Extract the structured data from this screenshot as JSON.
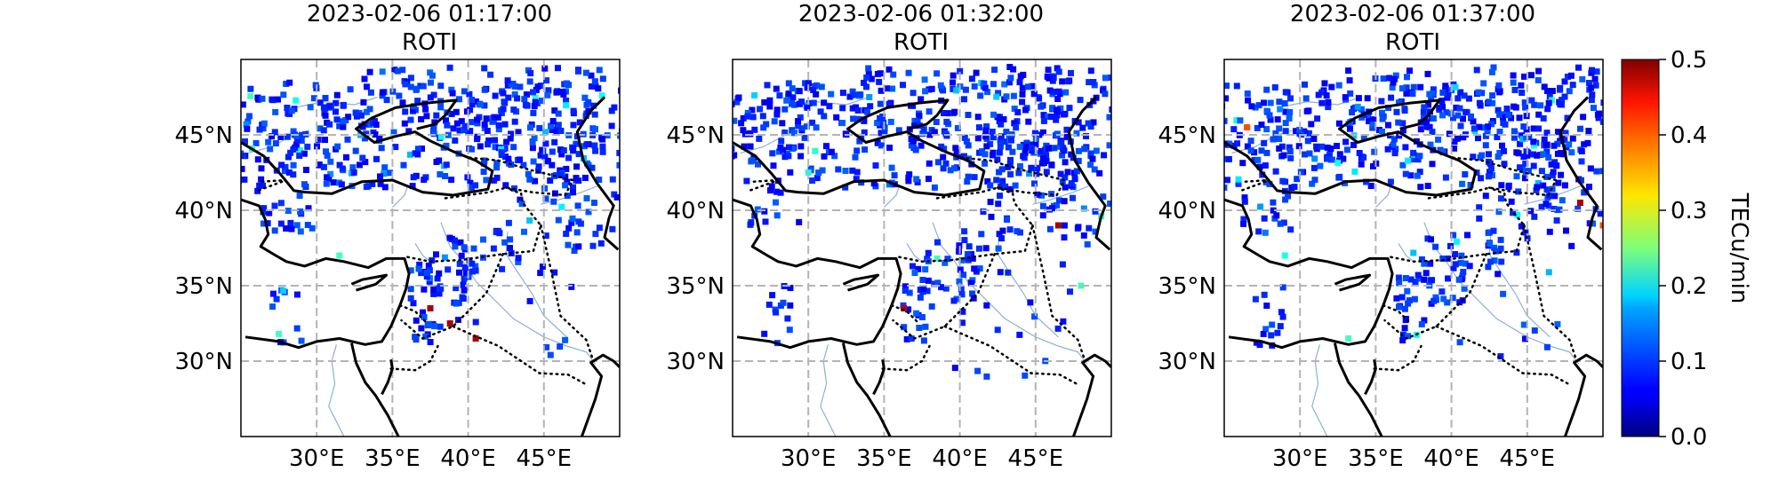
{
  "chart_data": {
    "type": "scatter",
    "panels": [
      {
        "title": "2023-02-06 01:17:00",
        "subtitle": "ROTI",
        "seed": 17,
        "hotspots": [
          [
            37.5,
            33.5,
            0.48
          ],
          [
            38.8,
            32.5,
            0.48
          ],
          [
            40.5,
            31.5,
            0.48
          ],
          [
            27.5,
            31.8,
            0.22
          ],
          [
            31.5,
            37.0,
            0.22
          ]
        ]
      },
      {
        "title": "2023-02-06 01:32:00",
        "subtitle": "ROTI",
        "seed": 32,
        "hotspots": [
          [
            38.5,
            36.8,
            0.22
          ],
          [
            46.5,
            39.0,
            0.48
          ],
          [
            36.3,
            33.5,
            0.47
          ],
          [
            30.0,
            42.5,
            0.2
          ],
          [
            48.0,
            35.0,
            0.22
          ]
        ]
      },
      {
        "title": "2023-02-06 01:37:00",
        "subtitle": "ROTI",
        "seed": 37,
        "hotspots": [
          [
            26.5,
            45.5,
            0.4
          ],
          [
            48.5,
            40.5,
            0.48
          ],
          [
            50.0,
            39.0,
            0.4
          ],
          [
            33.2,
            31.5,
            0.22
          ],
          [
            29.0,
            37.0,
            0.2
          ]
        ]
      }
    ],
    "lon_range": [
      25,
      50
    ],
    "lat_range": [
      25,
      50
    ],
    "x_ticks": [
      "30°E",
      "35°E",
      "40°E",
      "45°E"
    ],
    "x_tick_values": [
      30,
      35,
      40,
      45
    ],
    "y_ticks": [
      "45°N",
      "40°N",
      "35°N",
      "30°N"
    ],
    "y_tick_values": [
      45,
      40,
      35,
      30
    ],
    "grid": true,
    "colorbar": {
      "label": "TECu/min",
      "min": 0.0,
      "max": 0.5,
      "ticks": [
        "0.5",
        "0.4",
        "0.3",
        "0.2",
        "0.1",
        "0.0"
      ],
      "tick_values": [
        0.5,
        0.4,
        0.3,
        0.2,
        0.1,
        0.0
      ],
      "colormap": "jet"
    },
    "colors": {
      "grid": "#b4b4b4",
      "coastline": "#000000",
      "rivers": "#8fb0d8",
      "axis": "#000000"
    }
  }
}
